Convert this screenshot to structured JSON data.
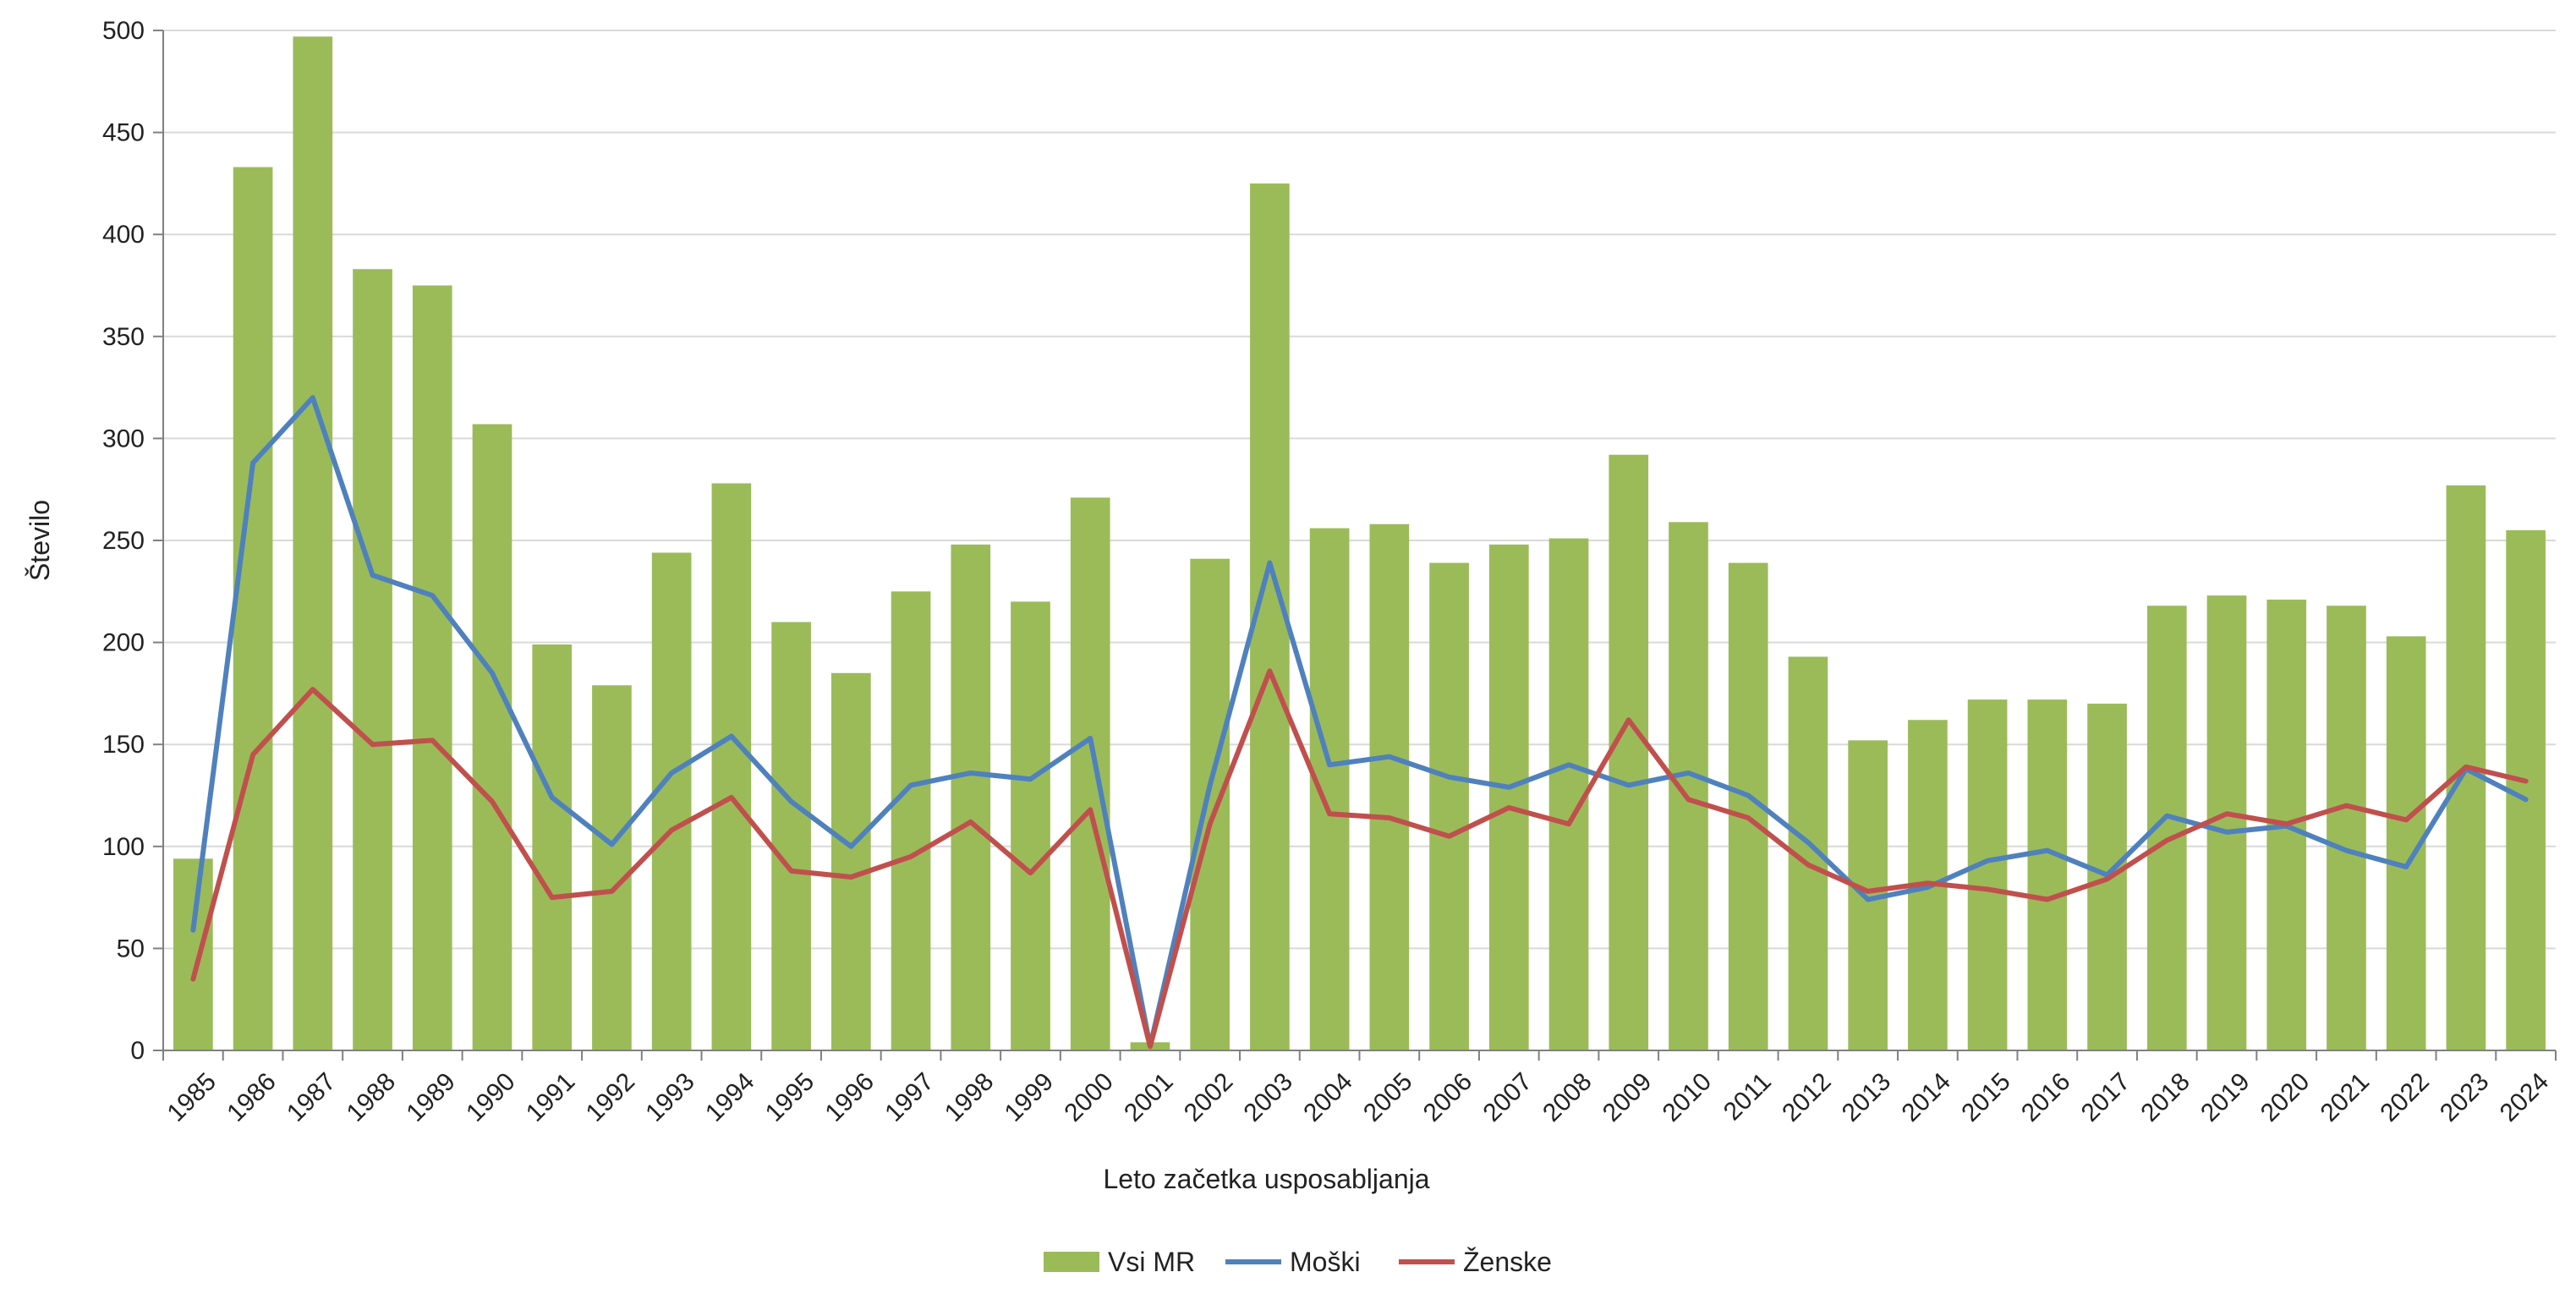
{
  "chart_data": {
    "type": "bar+line",
    "title": "",
    "xlabel": "Leto začetka usposabljanja",
    "ylabel": "Število",
    "ylim": [
      0,
      500
    ],
    "yticks": [
      0,
      50,
      100,
      150,
      200,
      250,
      300,
      350,
      400,
      450,
      500
    ],
    "grid": true,
    "legend_position": "bottom-center",
    "categories": [
      "1985",
      "1986",
      "1987",
      "1988",
      "1989",
      "1990",
      "1991",
      "1992",
      "1993",
      "1994",
      "1995",
      "1996",
      "1997",
      "1998",
      "1999",
      "2000",
      "2001",
      "2002",
      "2003",
      "2004",
      "2005",
      "2006",
      "2007",
      "2008",
      "2009",
      "2010",
      "2011",
      "2012",
      "2013",
      "2014",
      "2015",
      "2016",
      "2017",
      "2018",
      "2019",
      "2020",
      "2021",
      "2022",
      "2023",
      "2024"
    ],
    "series": [
      {
        "name": "Vsi MR",
        "kind": "bar",
        "color": "#9BBB59",
        "values": [
          94,
          433,
          497,
          383,
          375,
          307,
          199,
          179,
          244,
          278,
          210,
          185,
          225,
          248,
          220,
          271,
          4,
          241,
          425,
          256,
          258,
          239,
          248,
          251,
          292,
          259,
          239,
          193,
          152,
          162,
          172,
          172,
          170,
          218,
          223,
          221,
          218,
          203,
          277,
          255
        ]
      },
      {
        "name": "Moški",
        "kind": "line",
        "color": "#4F81BD",
        "values": [
          59,
          288,
          320,
          233,
          223,
          185,
          124,
          101,
          136,
          154,
          122,
          100,
          130,
          136,
          133,
          153,
          2,
          130,
          239,
          140,
          144,
          134,
          129,
          140,
          130,
          136,
          125,
          102,
          74,
          80,
          93,
          98,
          86,
          115,
          107,
          110,
          98,
          90,
          138,
          123
        ]
      },
      {
        "name": "Ženske",
        "kind": "line",
        "color": "#C0504D",
        "values": [
          35,
          145,
          177,
          150,
          152,
          122,
          75,
          78,
          108,
          124,
          88,
          85,
          95,
          112,
          87,
          118,
          2,
          111,
          186,
          116,
          114,
          105,
          119,
          111,
          162,
          123,
          114,
          91,
          78,
          82,
          79,
          74,
          84,
          103,
          116,
          111,
          120,
          113,
          139,
          132
        ]
      }
    ]
  },
  "colors": {
    "axis": "#808080",
    "grid": "#D9D9D9",
    "text": "#222222"
  }
}
